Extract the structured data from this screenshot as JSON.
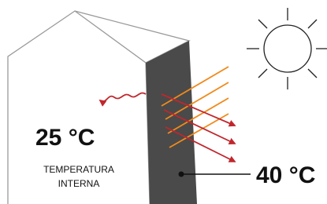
{
  "labels": {
    "inside_temperature": "25 °C",
    "inside_caption": [
      "TEMPERATURA",
      "INTERNA"
    ],
    "wall_temperature": "40 °C"
  }
}
